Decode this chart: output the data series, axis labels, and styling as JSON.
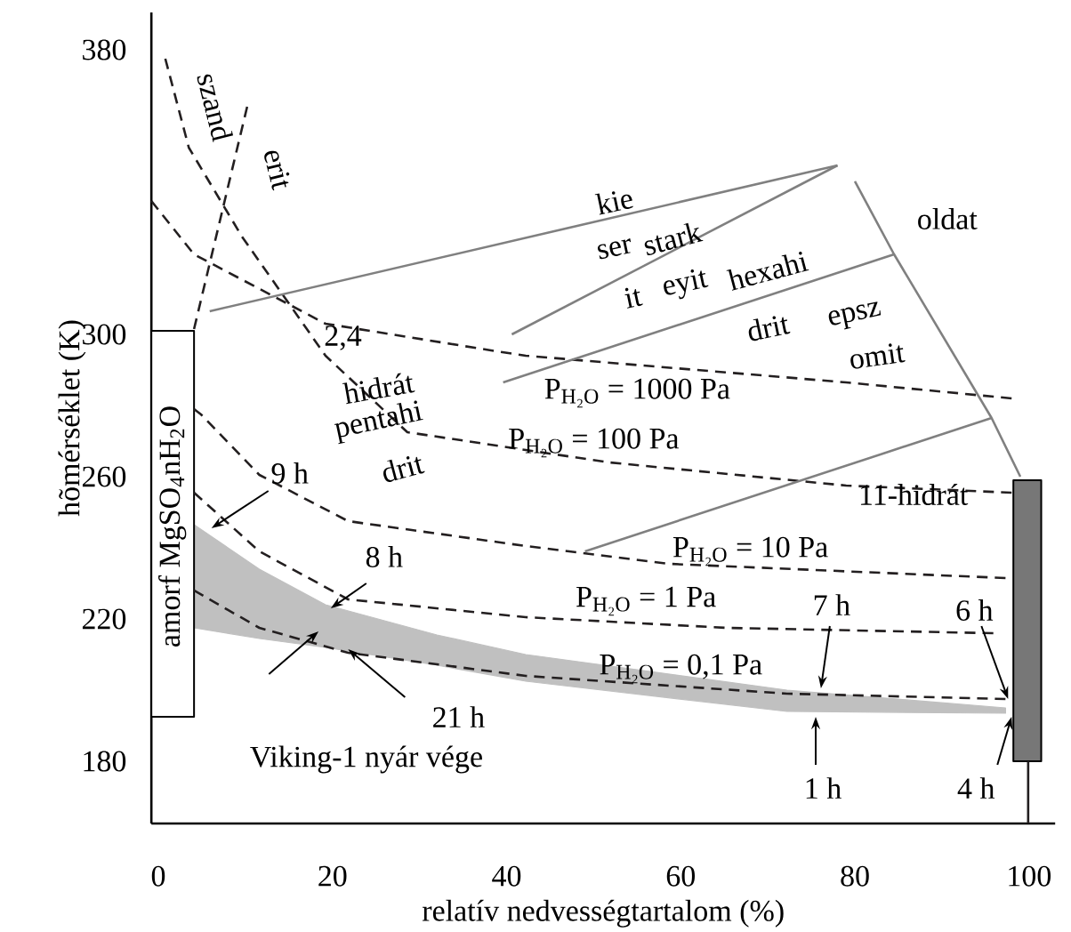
{
  "chart_data": {
    "type": "line",
    "xlabel": "relatív nedvességtartalom (%)",
    "ylabel": "hõmérséklet (K)",
    "xlim": [
      -0.8,
      103
    ],
    "ylim": [
      162.5,
      390.5
    ],
    "xticks": [
      0,
      20,
      40,
      60,
      80,
      100
    ],
    "yticks": [
      180,
      220,
      260,
      300,
      380
    ],
    "series": [
      {
        "type": "area",
        "color": "#c0c0c0",
        "x": [
          4.1,
          11.6,
          19.2,
          32,
          42.2,
          72.2,
          97.3
        ],
        "values": [
          null,
          null,
          null,
          null,
          null,
          null,
          null
        ],
        "upper": [
          246.5,
          234,
          224,
          215.5,
          210,
          200,
          195
        ],
        "lower": [
          217.5,
          214.5,
          212,
          207,
          202.5,
          194,
          193.5
        ]
      },
      {
        "type": "area",
        "color": "#ffffff",
        "line_style": "solid",
        "x": [
          -0.8,
          4.1
        ],
        "values": [
          null,
          null
        ],
        "upper": [
          301,
          301
        ],
        "lower": [
          192.5,
          192.5
        ]
      },
      {
        "type": "area",
        "color": "#777777",
        "line_style": "solid",
        "x": [
          98.2,
          101.4
        ],
        "values": [
          null,
          null
        ],
        "upper": [
          259,
          259
        ],
        "lower": [
          180,
          180
        ]
      },
      {
        "color": "#231f20",
        "line_style": "dashed",
        "x": [
          -0.8,
          4.1,
          19.2,
          38.2,
          42.2,
          79,
          98
        ],
        "values": [
          337.5,
          322.5,
          303,
          295.5,
          294,
          286.5,
          282
        ]
      },
      {
        "color": "#231f20",
        "line_style": "dashed",
        "x": [
          0.8,
          3.5,
          9.6,
          19.2,
          28.6,
          42.2,
          51.8,
          79,
          98
        ],
        "values": [
          377.5,
          352.5,
          327.5,
          294,
          272.5,
          267.5,
          264,
          257.5,
          255.5
        ]
      },
      {
        "color": "#231f20",
        "line_style": "dashed",
        "x": [
          4.1,
          4.9,
          11.6,
          21.8,
          42.2,
          58.6,
          97.3
        ],
        "values": [
          279,
          277.5,
          260.5,
          247.5,
          240.5,
          235.5,
          231.5
        ]
      },
      {
        "color": "#231f20",
        "line_style": "dashed",
        "x": [
          4.1,
          11.6,
          21.8,
          42.2,
          65.3,
          95.9
        ],
        "values": [
          255.5,
          239,
          225.5,
          220.5,
          217.5,
          216
        ]
      },
      {
        "color": "#231f20",
        "line_style": "dashed",
        "x": [
          4.1,
          11.6,
          21.8,
          42.2,
          72.2,
          97.3
        ],
        "values": [
          228,
          217.5,
          210.5,
          204,
          199,
          197.5
        ]
      },
      {
        "color": "#231f20",
        "line_style": "dashed",
        "x": [
          4.1,
          10.2
        ],
        "values": [
          301.5,
          364
        ]
      },
      {
        "color": "#808080",
        "line_style": "solid",
        "x": [
          5.9,
          78
        ],
        "values": [
          306.5,
          347.5
        ]
      },
      {
        "color": "#808080",
        "line_style": "solid",
        "x": [
          40.6,
          78
        ],
        "values": [
          300,
          347.5
        ]
      },
      {
        "color": "#808080",
        "line_style": "solid",
        "x": [
          39.6,
          84.5
        ],
        "values": [
          286.5,
          322.5
        ]
      },
      {
        "color": "#808080",
        "line_style": "solid",
        "x": [
          49,
          95.7
        ],
        "values": [
          239,
          276.5
        ]
      },
      {
        "color": "#808080",
        "line_style": "solid",
        "x": [
          80,
          84.5,
          95.7,
          99
        ],
        "values": [
          343,
          322.5,
          276.5,
          260
        ]
      },
      {
        "color": "#231f20",
        "line_style": "solid",
        "x": [
          99.9,
          99.9
        ],
        "values": [
          180,
          162.5
        ]
      }
    ],
    "annotations": [
      "szand",
      "erit",
      "kie",
      "ser",
      "it",
      "stark",
      "eyit",
      "hexahi",
      "drit",
      "epsz",
      "omit",
      "oldat",
      "2,4",
      "hidrát",
      "pentahi",
      "drit",
      "11-hidrát",
      "P$_{H₂O}$ = 1000 Pa",
      "P$_{H₂O}$ = 100 Pa",
      "P$_{H₂O}$ = 10 Pa",
      "P$_{H₂O}$ = 1 Pa",
      "P$_{H₂O}$ = 0,1 Pa",
      "amorf MgSO$_{4}$nH$_{2}$O",
      {
        "text": "9 h",
        "x": 6.1,
        "y": 245.5
      },
      {
        "text": "8 h",
        "x": 19.8,
        "y": 223
      },
      {
        "text": "21 h",
        "x": 21.8,
        "y": 211.5
      },
      "Viking-1 nyár vége",
      {
        "text": "7 h",
        "x": 76.1,
        "y": 200.5
      },
      {
        "text": "6 h",
        "x": 97.6,
        "y": 197.5
      },
      {
        "text": "1 h",
        "x": 75.5,
        "y": 192.5
      },
      {
        "text": "4 h",
        "x": 98,
        "y": 192.5
      }
    ]
  }
}
